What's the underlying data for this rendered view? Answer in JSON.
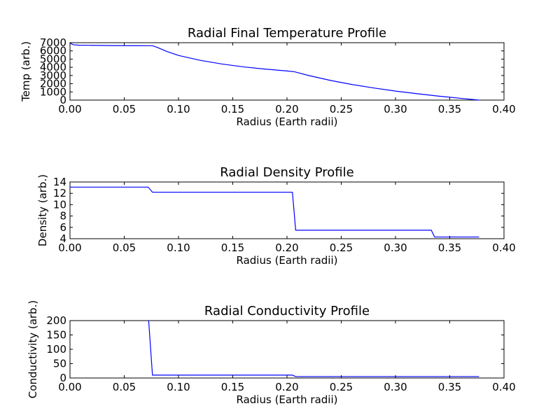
{
  "chart_data": [
    {
      "type": "line",
      "title": "Radial Final Temperature Profile",
      "xlabel": "Radius (Earth radii)",
      "ylabel": "Temp (arb.)",
      "xlim": [
        0,
        0.4
      ],
      "ylim": [
        0,
        7000
      ],
      "xticks": [
        "0.00",
        "0.05",
        "0.10",
        "0.15",
        "0.20",
        "0.25",
        "0.30",
        "0.35",
        "0.40"
      ],
      "yticks": [
        "0",
        "1000",
        "2000",
        "3000",
        "4000",
        "5000",
        "6000",
        "7000"
      ],
      "grid": false,
      "color": "#0000ff",
      "x": [
        0.0,
        0.003,
        0.008,
        0.02,
        0.04,
        0.06,
        0.076,
        0.08,
        0.09,
        0.1,
        0.12,
        0.14,
        0.16,
        0.18,
        0.2,
        0.207,
        0.22,
        0.24,
        0.26,
        0.28,
        0.3,
        0.32,
        0.34,
        0.36,
        0.377
      ],
      "y": [
        6950,
        6750,
        6700,
        6680,
        6650,
        6640,
        6630,
        6450,
        5900,
        5450,
        4850,
        4400,
        4050,
        3780,
        3550,
        3450,
        3000,
        2400,
        1900,
        1480,
        1100,
        780,
        480,
        220,
        0
      ]
    },
    {
      "type": "line",
      "title": "Radial Density Profile",
      "xlabel": "Radius (Earth radii)",
      "ylabel": "Density (arb.)",
      "xlim": [
        0,
        0.4
      ],
      "ylim": [
        4,
        14
      ],
      "xticks": [
        "0.00",
        "0.05",
        "0.10",
        "0.15",
        "0.20",
        "0.25",
        "0.30",
        "0.35",
        "0.40"
      ],
      "yticks": [
        "4",
        "6",
        "8",
        "10",
        "12",
        "14"
      ],
      "grid": false,
      "color": "#0000ff",
      "x": [
        0.0,
        0.072,
        0.076,
        0.205,
        0.208,
        0.333,
        0.336,
        0.377
      ],
      "y": [
        13.1,
        13.1,
        12.2,
        12.2,
        5.5,
        5.5,
        4.3,
        4.3
      ]
    },
    {
      "type": "line",
      "title": "Radial Conductivity Profile",
      "xlabel": "Radius (Earth radii)",
      "ylabel": "Conductivity (arb.)",
      "xlim": [
        0,
        0.4
      ],
      "ylim": [
        0,
        200
      ],
      "xticks": [
        "0.00",
        "0.05",
        "0.10",
        "0.15",
        "0.20",
        "0.25",
        "0.30",
        "0.35",
        "0.40"
      ],
      "yticks": [
        "0",
        "50",
        "100",
        "150",
        "200"
      ],
      "grid": false,
      "color": "#0000ff",
      "x": [
        0.0725,
        0.076,
        0.205,
        0.208,
        0.377
      ],
      "y": [
        200,
        10,
        10,
        5,
        5
      ]
    }
  ]
}
